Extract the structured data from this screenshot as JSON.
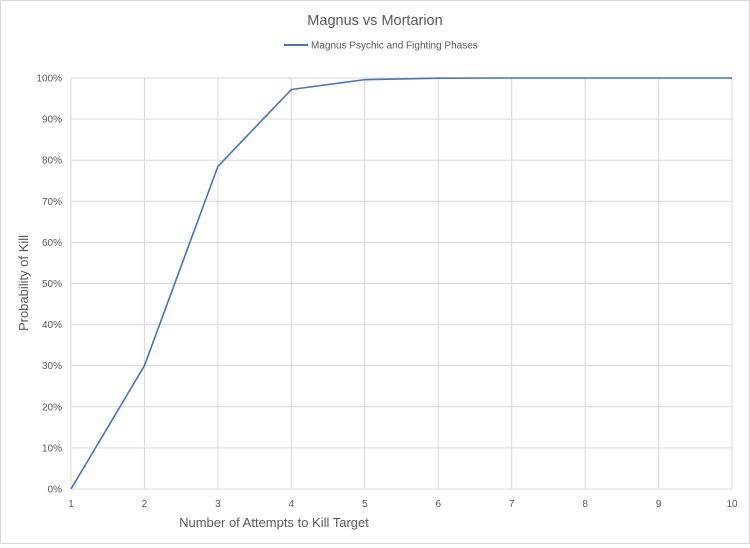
{
  "chart_data": {
    "type": "line",
    "title": "Magnus vs Mortarion",
    "xlabel": "Number of Attempts to Kill Target",
    "ylabel": "Probability of Kill",
    "x": [
      1,
      2,
      3,
      4,
      5,
      6,
      7,
      8,
      9,
      10
    ],
    "xlim": [
      1,
      10
    ],
    "ylim": [
      0,
      1
    ],
    "y_tick_labels": [
      "0%",
      "10%",
      "20%",
      "30%",
      "40%",
      "50%",
      "60%",
      "70%",
      "80%",
      "90%",
      "100%"
    ],
    "x_tick_labels": [
      "1",
      "2",
      "3",
      "4",
      "5",
      "6",
      "7",
      "8",
      "9",
      "10"
    ],
    "grid": true,
    "legend_position": "top",
    "series": [
      {
        "name": "Magnus Psychic and Fighting Phases",
        "color": "#4472c4",
        "values": [
          0.0,
          0.3,
          0.785,
          0.972,
          0.996,
          0.9995,
          1.0,
          1.0,
          1.0,
          1.0
        ]
      }
    ]
  }
}
